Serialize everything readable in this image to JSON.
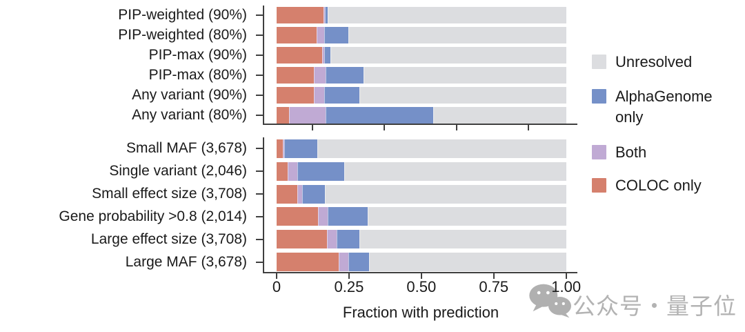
{
  "chart_data": {
    "type": "bar",
    "orientation": "horizontal",
    "stacked": true,
    "title": "",
    "xlabel": "Fraction with prediction",
    "ylabel": "",
    "xlim": [
      0,
      1
    ],
    "grid": false,
    "legend_position": "right",
    "segment_order": [
      "coloc_only",
      "both",
      "alphagenome_only",
      "unresolved"
    ],
    "colors": {
      "unresolved": "#dcdde0",
      "alphagenome_only": "#7590c8",
      "both": "#c0aad4",
      "coloc_only": "#d5806d",
      "axis": "#3f3f3f",
      "text": "#1a1a1a",
      "watermark": "#b3b3b3"
    },
    "x_ticks": [
      {
        "value": 0,
        "label": "0"
      },
      {
        "value": 0.25,
        "label": "0.25"
      },
      {
        "value": 0.5,
        "label": "0.50"
      },
      {
        "value": 0.75,
        "label": "0.75"
      },
      {
        "value": 1.0,
        "label": "1.00"
      }
    ],
    "panels": [
      {
        "name": "fine-mapping-strategies",
        "unlabeled_x_ticks": [
          0.123,
          0.372,
          0.621,
          0.87
        ],
        "categories": [
          "PIP-weighted (90%)",
          "PIP-weighted (80%)",
          "PIP-max (90%)",
          "PIP-max (80%)",
          "Any variant (90%)",
          "Any variant (80%)"
        ],
        "series": [
          {
            "name": "COLOC only",
            "key": "coloc_only",
            "values": [
              0.163,
              0.138,
              0.158,
              0.129,
              0.129,
              0.043
            ]
          },
          {
            "name": "Both",
            "key": "both",
            "values": [
              0.004,
              0.027,
              0.006,
              0.04,
              0.036,
              0.126
            ]
          },
          {
            "name": "AlphaGenome only",
            "key": "alphagenome_only",
            "values": [
              0.01,
              0.084,
              0.023,
              0.132,
              0.122,
              0.372
            ]
          },
          {
            "name": "Unresolved",
            "key": "unresolved",
            "values": [
              0.823,
              0.751,
              0.813,
              0.699,
              0.713,
              0.459
            ]
          }
        ]
      },
      {
        "name": "variant-subsets",
        "unlabeled_x_ticks": [],
        "categories": [
          "Small MAF (3,678)",
          "Single variant (2,046)",
          "Small effect size (3,708)",
          "Gene probability >0.8 (2,014)",
          "Large effect size (3,708)",
          "Large MAF (3,678)"
        ],
        "series": [
          {
            "name": "COLOC only",
            "key": "coloc_only",
            "values": [
              0.021,
              0.039,
              0.071,
              0.142,
              0.175,
              0.214
            ]
          },
          {
            "name": "Both",
            "key": "both",
            "values": [
              0.005,
              0.032,
              0.017,
              0.035,
              0.032,
              0.034
            ]
          },
          {
            "name": "AlphaGenome only",
            "key": "alphagenome_only",
            "values": [
              0.114,
              0.162,
              0.08,
              0.137,
              0.078,
              0.072
            ]
          },
          {
            "name": "Unresolved",
            "key": "unresolved",
            "values": [
              0.86,
              0.767,
              0.832,
              0.686,
              0.715,
              0.68
            ]
          }
        ]
      }
    ],
    "legend": [
      {
        "label": "Unresolved",
        "key": "unresolved"
      },
      {
        "label": "AlphaGenome only",
        "key": "alphagenome_only"
      },
      {
        "label": "Both",
        "key": "both"
      },
      {
        "label": "COLOC only",
        "key": "coloc_only"
      }
    ]
  },
  "watermark": {
    "text": "公众号・量子位",
    "icon": "wechat-icon"
  }
}
